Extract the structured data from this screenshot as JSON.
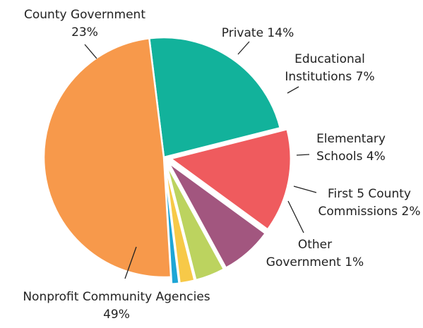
{
  "chart_data": {
    "type": "pie",
    "title": "",
    "slices": [
      {
        "label": [
          "County Government",
          "23%"
        ],
        "value": 23,
        "color": "#12b29b",
        "exploded": false
      },
      {
        "label": [
          "Private 14%"
        ],
        "value": 14,
        "color": "#ef5b5e",
        "exploded": true
      },
      {
        "label": [
          "Educational",
          "Institutions 7%"
        ],
        "value": 7,
        "color": "#a2567f",
        "exploded": true
      },
      {
        "label": [
          "Elementary",
          "Schools 4%"
        ],
        "value": 4,
        "color": "#bcd35f",
        "exploded": true
      },
      {
        "label": [
          "First 5 County",
          "Commissions 2%"
        ],
        "value": 2,
        "color": "#f7c948",
        "exploded": true
      },
      {
        "label": [
          "Other",
          "Government 1%"
        ],
        "value": 1,
        "color": "#1ea6d6",
        "exploded": true
      },
      {
        "label": [
          "Nonprofit Community Agencies",
          "49%"
        ],
        "value": 49,
        "color": "#f7994b",
        "exploded": false
      }
    ]
  }
}
